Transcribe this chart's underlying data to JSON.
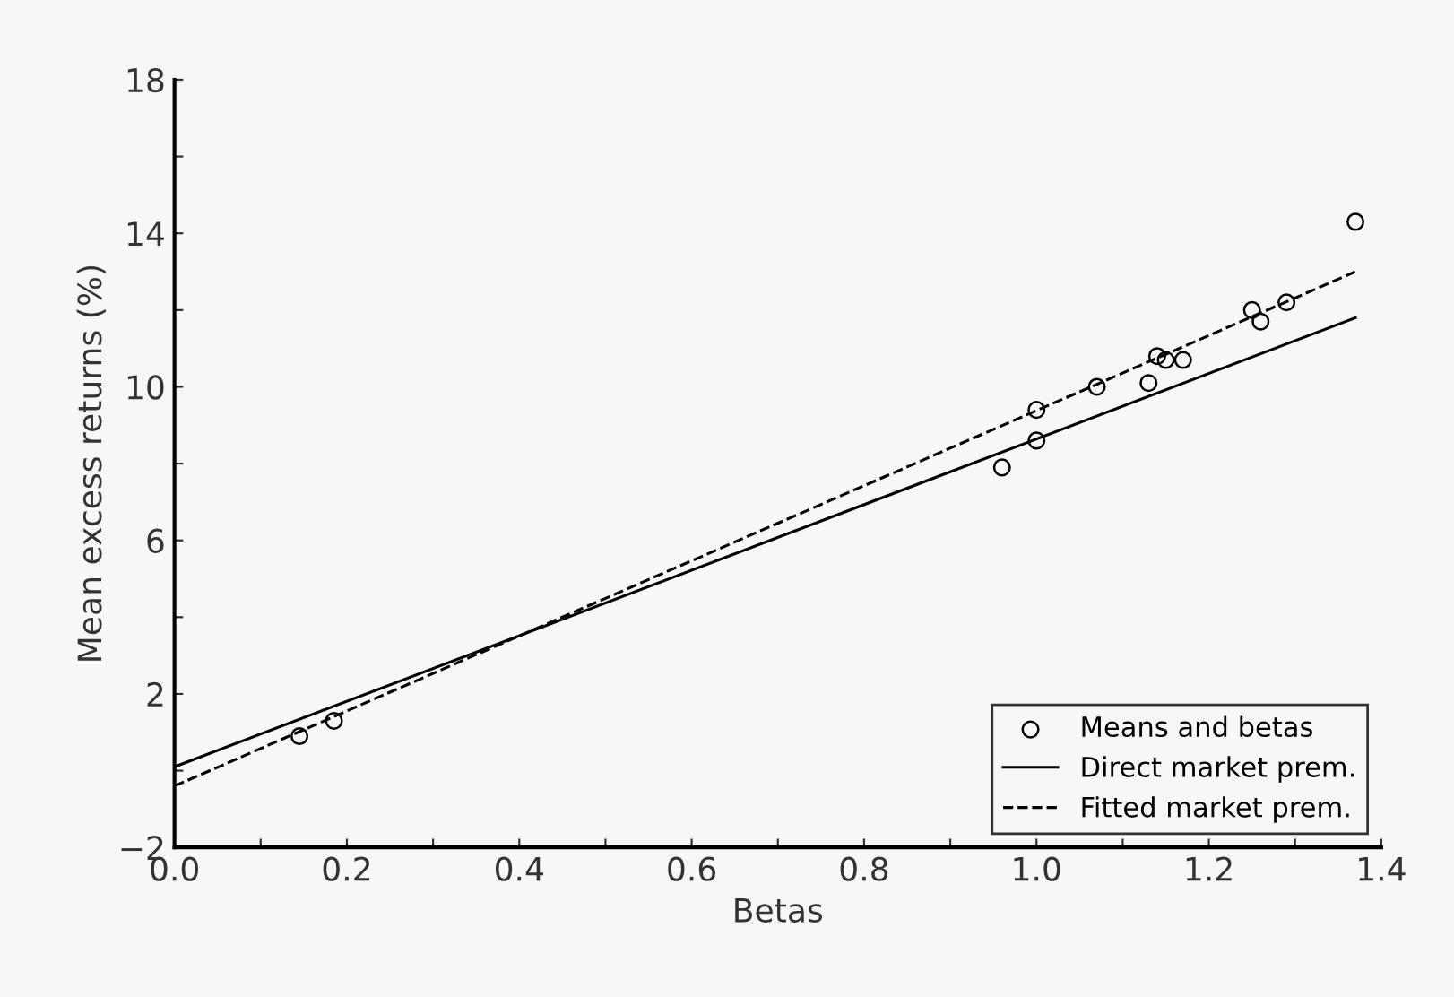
{
  "chart_data": {
    "type": "scatter",
    "xlabel": "Betas",
    "ylabel": "Mean excess returns (%)",
    "xlim": [
      0,
      1.4
    ],
    "xticks": [
      {
        "value": 0,
        "label": "0.0"
      },
      {
        "value": 0.1,
        "label": null
      },
      {
        "value": 0.2,
        "label": "0.2"
      },
      {
        "value": 0.3,
        "label": null
      },
      {
        "value": 0.4,
        "label": "0.4"
      },
      {
        "value": 0.5,
        "label": null
      },
      {
        "value": 0.6,
        "label": "0.6"
      },
      {
        "value": 0.7,
        "label": null
      },
      {
        "value": 0.8,
        "label": "0.8"
      },
      {
        "value": 0.9,
        "label": null
      },
      {
        "value": 1.0,
        "label": "1.0"
      },
      {
        "value": 1.1,
        "label": null
      },
      {
        "value": 1.2,
        "label": "1.2"
      },
      {
        "value": 1.3,
        "label": null
      },
      {
        "value": 1.4,
        "label": "1.4"
      }
    ],
    "ylim": [
      -2,
      18
    ],
    "yticks": [
      {
        "value": -2,
        "label": "−2"
      },
      {
        "value": 0,
        "label": null
      },
      2,
      {
        "value": 4,
        "label": null
      },
      6,
      {
        "value": 8,
        "label": null
      },
      10,
      {
        "value": 12,
        "label": null
      },
      14,
      {
        "value": 16,
        "label": null
      },
      18
    ],
    "grid": false,
    "legend": "bottom right",
    "series": [
      {
        "name": "Means and betas",
        "marker": "circle",
        "color": "#000000",
        "x": [
          0.145,
          0.185,
          0.96,
          1.0,
          1.0,
          1.07,
          1.13,
          1.14,
          1.15,
          1.17,
          1.25,
          1.26,
          1.29,
          1.37
        ],
        "values": [
          0.9,
          1.3,
          7.9,
          8.6,
          9.4,
          10.0,
          10.1,
          10.8,
          10.7,
          10.7,
          12.0,
          11.7,
          12.2,
          14.3
        ]
      },
      {
        "name": "Direct market prem.",
        "type": "line",
        "line_style": "solid",
        "color": "#000000",
        "x": [
          0,
          1.37
        ],
        "values": [
          0.1,
          11.8
        ]
      },
      {
        "name": "Fitted market prem.",
        "type": "line",
        "line_style": "dashed",
        "color": "#000000",
        "x": [
          0,
          1.37
        ],
        "values": [
          -0.4,
          13.0
        ]
      }
    ]
  }
}
